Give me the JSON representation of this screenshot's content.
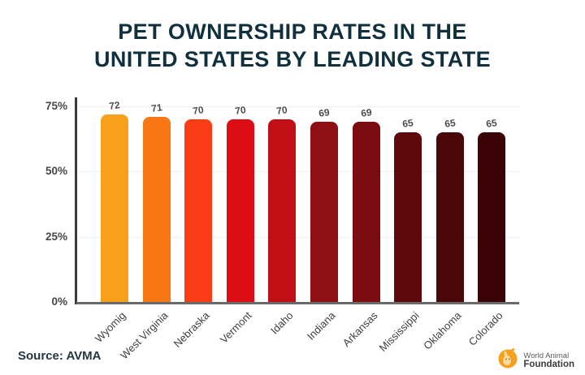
{
  "title": {
    "line1": "PET OWNERSHIP RATES IN THE",
    "line2": "UNITED STATES BY LEADING STATE"
  },
  "source": {
    "label": "Source: AVMA"
  },
  "logo": {
    "icon": "world-animal-foundation-icon",
    "line1": "World Animal",
    "line2": "Foundation",
    "icon_color": "#F5A01E"
  },
  "colors": {
    "background": "#ffffff",
    "title": "#11303E",
    "y_axis": "#3b3b3b",
    "x_axis": "#6a6a6a",
    "tick_label": "#474747",
    "value_label": "#4c4c4c",
    "category_label": "#3f3f3f",
    "gridline": "#efefef"
  },
  "chart_data": {
    "type": "bar",
    "title": "PET OWNERSHIP RATES IN THE UNITED STATES BY LEADING STATE",
    "categories": [
      "Wyomig",
      "West Virginia",
      "Nebraska",
      "Vermont",
      "Idaho",
      "Indiana",
      "Arkansas",
      "Mississippi",
      "Oklahoma",
      "Colorado"
    ],
    "values": [
      72,
      71,
      70,
      70,
      70,
      69,
      69,
      65,
      65,
      65
    ],
    "unit": "%",
    "bar_colors": [
      "#F9A01B",
      "#F87714",
      "#FA3D16",
      "#DC0D14",
      "#C00F15",
      "#8E1013",
      "#7C0C0F",
      "#5E090C",
      "#4A0709",
      "#3A0406"
    ],
    "y_ticks": [
      {
        "label": "75%",
        "value": 75
      },
      {
        "label": "50%",
        "value": 50
      },
      {
        "label": "25%",
        "value": 25
      },
      {
        "label": "0%",
        "value": 0
      }
    ],
    "ylim": [
      0,
      75
    ],
    "value_labels": true,
    "grid": "faint-horizontal",
    "legend": "none",
    "xlabel": "",
    "ylabel": ""
  }
}
